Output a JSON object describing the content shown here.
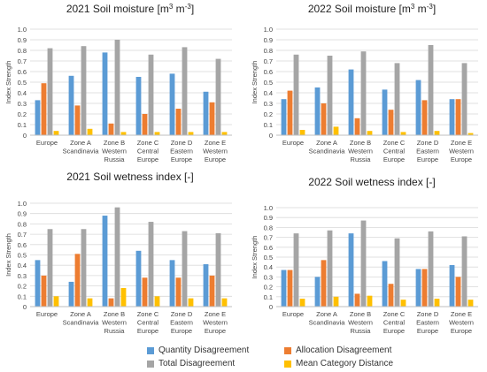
{
  "legend": [
    {
      "name": "Quantity Disagreement",
      "color": "#5b9bd5"
    },
    {
      "name": "Allocation Disagreement",
      "color": "#ed7d31"
    },
    {
      "name": "Total Disagreement",
      "color": "#a5a5a5"
    },
    {
      "name": "Mean Category Distance",
      "color": "#ffc000"
    }
  ],
  "chart_data": [
    {
      "type": "bar",
      "title": "2021 Soil moisture [m",
      "title_sup1": "3",
      "title_mid": " m",
      "title_sup2": "-3",
      "title_end": "]",
      "ylabel": "Index Strength",
      "ylim": [
        0,
        1.0
      ],
      "yticks": [
        "0",
        "0.1",
        "0.2",
        "0.3",
        "0.4",
        "0.5",
        "0.6",
        "0.7",
        "0.8",
        "0.9",
        "1.0"
      ],
      "grid": true,
      "categories": [
        [
          "Europe"
        ],
        [
          "Zone A",
          "Scandinavia"
        ],
        [
          "Zone B",
          "Western",
          "Russia"
        ],
        [
          "Zone C",
          "Central",
          "Europe"
        ],
        [
          "Zone D",
          "Eastern",
          "Europe"
        ],
        [
          "Zone E",
          "Western",
          "Europe"
        ]
      ],
      "series": [
        {
          "name": "Quantity Disagreement",
          "values": [
            0.33,
            0.56,
            0.78,
            0.55,
            0.58,
            0.41
          ]
        },
        {
          "name": "Allocation Disagreement",
          "values": [
            0.49,
            0.28,
            0.11,
            0.2,
            0.25,
            0.31
          ]
        },
        {
          "name": "Total Disagreement",
          "values": [
            0.82,
            0.84,
            0.9,
            0.76,
            0.83,
            0.72
          ]
        },
        {
          "name": "Mean Category Distance",
          "values": [
            0.04,
            0.06,
            0.03,
            0.03,
            0.03,
            0.03
          ]
        }
      ]
    },
    {
      "type": "bar",
      "title": "2022 Soil moisture [m",
      "title_sup1": "3",
      "title_mid": " m",
      "title_sup2": "-3",
      "title_end": "]",
      "ylabel": "Index Strength",
      "ylim": [
        0,
        1.0
      ],
      "yticks": [
        "0",
        "0.1",
        "0.2",
        "0.3",
        "0.4",
        "0.5",
        "0.6",
        "0.7",
        "0.8",
        "0.9",
        "1.0"
      ],
      "grid": true,
      "categories": [
        [
          "Europe"
        ],
        [
          "Zone A",
          "Scandinavia"
        ],
        [
          "Zone B",
          "Western",
          "Russia"
        ],
        [
          "Zone C",
          "Central",
          "Europe"
        ],
        [
          "Zone D",
          "Eastern",
          "Europe"
        ],
        [
          "Zone E",
          "Western",
          "Europe"
        ]
      ],
      "series": [
        {
          "name": "Quantity Disagreement",
          "values": [
            0.34,
            0.45,
            0.62,
            0.43,
            0.52,
            0.34
          ]
        },
        {
          "name": "Allocation Disagreement",
          "values": [
            0.42,
            0.3,
            0.16,
            0.24,
            0.33,
            0.34
          ]
        },
        {
          "name": "Total Disagreement",
          "values": [
            0.76,
            0.75,
            0.79,
            0.68,
            0.85,
            0.68
          ]
        },
        {
          "name": "Mean Category Distance",
          "values": [
            0.05,
            0.08,
            0.04,
            0.03,
            0.04,
            0.02
          ]
        }
      ]
    },
    {
      "type": "bar",
      "title": "2021 Soil wetness index [-]",
      "ylabel": "Index Strength",
      "ylim": [
        0,
        1.0
      ],
      "yticks": [
        "0",
        "0.1",
        "0.2",
        "0.3",
        "0.4",
        "0.5",
        "0.6",
        "0.7",
        "0.8",
        "0.9",
        "1.0"
      ],
      "grid": true,
      "categories": [
        [
          "Europe"
        ],
        [
          "Zone A",
          "Scandinavia"
        ],
        [
          "Zone B",
          "Western",
          "Russia"
        ],
        [
          "Zone C",
          "Central",
          "Europe"
        ],
        [
          "Zone D",
          "Eastern",
          "Europe"
        ],
        [
          "Zone E",
          "Western",
          "Europe"
        ]
      ],
      "series": [
        {
          "name": "Quantity Disagreement",
          "values": [
            0.45,
            0.24,
            0.88,
            0.54,
            0.45,
            0.41
          ]
        },
        {
          "name": "Allocation Disagreement",
          "values": [
            0.3,
            0.51,
            0.08,
            0.28,
            0.28,
            0.3
          ]
        },
        {
          "name": "Total Disagreement",
          "values": [
            0.75,
            0.75,
            0.96,
            0.82,
            0.73,
            0.71
          ]
        },
        {
          "name": "Mean Category Distance",
          "values": [
            0.1,
            0.08,
            0.18,
            0.1,
            0.08,
            0.08
          ]
        }
      ]
    },
    {
      "type": "bar",
      "title": "2022 Soil wetness index [-]",
      "ylabel": "Index Strength",
      "ylim": [
        0,
        1.0
      ],
      "yticks": [
        "0",
        "0.1",
        "0.2",
        "0.3",
        "0.4",
        "0.5",
        "0.6",
        "0.7",
        "0.8",
        "0.9",
        "1.0"
      ],
      "grid": true,
      "categories": [
        [
          "Europe"
        ],
        [
          "Zone A",
          "Scandinavia"
        ],
        [
          "Zone B",
          "Western",
          "Russia"
        ],
        [
          "Zone C",
          "Central",
          "Europe"
        ],
        [
          "Zone D",
          "Eastern",
          "Europe"
        ],
        [
          "Zone E",
          "Western",
          "Europe"
        ]
      ],
      "series": [
        {
          "name": "Quantity Disagreement",
          "values": [
            0.37,
            0.3,
            0.74,
            0.46,
            0.38,
            0.42
          ]
        },
        {
          "name": "Allocation Disagreement",
          "values": [
            0.37,
            0.47,
            0.13,
            0.23,
            0.38,
            0.3
          ]
        },
        {
          "name": "Total Disagreement",
          "values": [
            0.74,
            0.77,
            0.87,
            0.69,
            0.76,
            0.71
          ]
        },
        {
          "name": "Mean Category Distance",
          "values": [
            0.08,
            0.1,
            0.11,
            0.07,
            0.08,
            0.07
          ]
        }
      ]
    }
  ]
}
